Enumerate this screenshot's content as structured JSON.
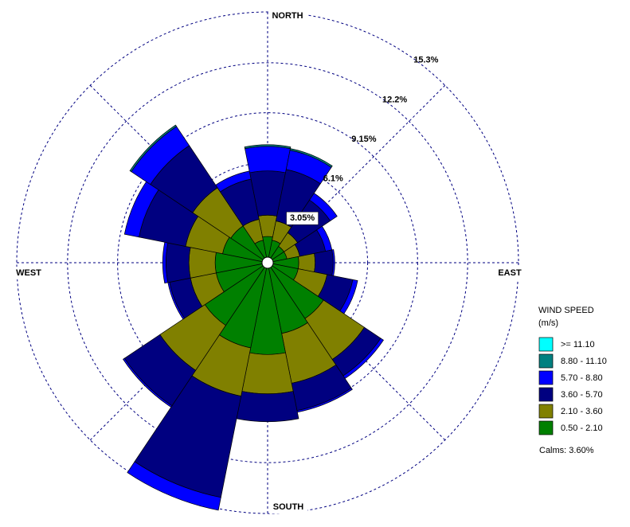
{
  "chart_data": {
    "type": "windrose",
    "categories": [
      null,
      null,
      null,
      null,
      null,
      null,
      null,
      null,
      null,
      null,
      null,
      null,
      null,
      null,
      null,
      null
    ],
    "direction_labels": [
      "NORTH",
      "EAST",
      "SOUTH",
      "WEST"
    ],
    "rlim": [
      0,
      15.3
    ],
    "rticks": [
      {
        "value": 3.05,
        "label": "3.05%"
      },
      {
        "value": 6.1,
        "label": "6.1%"
      },
      {
        "value": 9.15,
        "label": "9.15%"
      },
      {
        "value": 12.2,
        "label": "12.2%"
      },
      {
        "value": 15.3,
        "label": "15.3%"
      }
    ],
    "legend_title": [
      "WIND SPEED",
      "(m/s)"
    ],
    "calms": "Calms: 3.60%",
    "series": [
      {
        "name": ">= 11.10",
        "color": "#00ffff",
        "values": [
          0,
          0,
          0,
          0,
          0,
          0,
          0,
          0,
          0,
          0,
          0,
          0,
          0,
          0,
          0,
          0
        ]
      },
      {
        "name": "8.80 - 11.10",
        "color": "#008080",
        "values": [
          0.1,
          0.1,
          0,
          0,
          0,
          0,
          0,
          0,
          0,
          0,
          0,
          0,
          0,
          0,
          0.1,
          0
        ]
      },
      {
        "name": "5.70 - 8.80",
        "color": "#0000ff",
        "values": [
          1.5,
          1.2,
          0.5,
          0.4,
          0.1,
          0.3,
          0.2,
          0.1,
          0,
          0.8,
          0.1,
          0.1,
          0.2,
          0.9,
          1.4,
          0.5
        ]
      },
      {
        "name": "3.60 - 5.70",
        "color": "#000080",
        "values": [
          2.7,
          3.2,
          2.4,
          1.6,
          1.1,
          1.6,
          1.2,
          1.7,
          1.7,
          6.3,
          2.6,
          1.3,
          1.4,
          2.9,
          3.1,
          2.5
        ]
      },
      {
        "name": "2.10 - 3.60",
        "color": "#808000",
        "values": [
          1.3,
          1.2,
          1.0,
          0.8,
          1.0,
          1.8,
          3.0,
          3.1,
          2.4,
          3.0,
          3.3,
          1.6,
          1.6,
          2.3,
          2.8,
          1.3
        ]
      },
      {
        "name": "0.50 - 2.10",
        "color": "#008000",
        "values": [
          1.6,
          1.4,
          1.2,
          1.2,
          1.9,
          1.9,
          4.1,
          4.4,
          5.6,
          5.3,
          4.6,
          3.2,
          3.2,
          2.8,
          2.7,
          1.4
        ]
      }
    ]
  }
}
